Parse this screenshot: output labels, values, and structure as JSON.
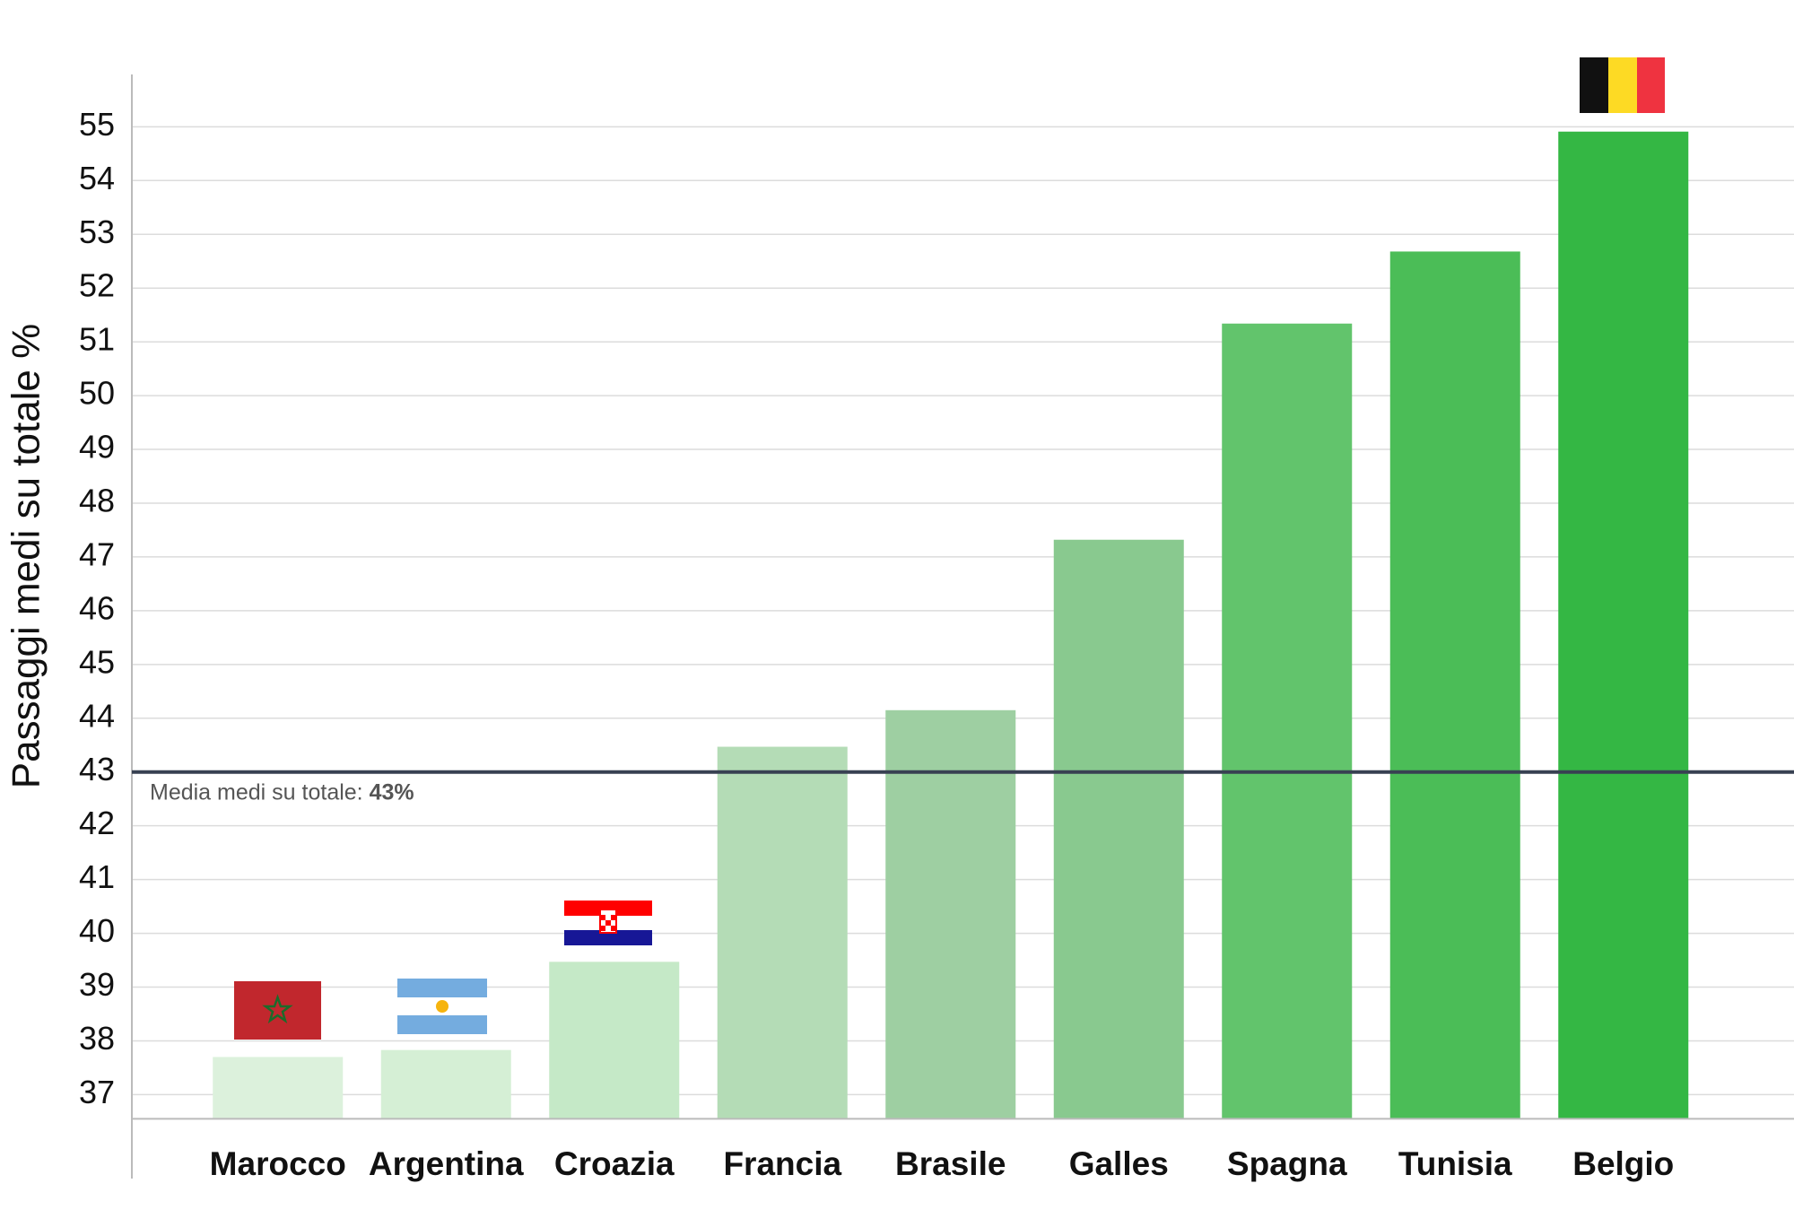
{
  "chart_data": {
    "type": "bar",
    "y_axis_label": "Passaggi medi su totale %",
    "categories": [
      "Marocco",
      "Argentina",
      "Croazia",
      "Francia",
      "Brasile",
      "Galles",
      "Spagna",
      "Tunisia",
      "Belgio"
    ],
    "values": [
      37.7,
      37.83,
      39.47,
      43.47,
      44.15,
      47.32,
      51.34,
      52.68,
      54.91
    ],
    "colors": [
      "#dcf1dc",
      "#d5efd5",
      "#c5e9c7",
      "#b4dcb6",
      "#9ecfa2",
      "#89c98f",
      "#62c46c",
      "#4bbd57",
      "#34b744"
    ],
    "ylim": [
      36.55,
      56
    ],
    "yticks": [
      37,
      38,
      39,
      40,
      41,
      42,
      43,
      44,
      45,
      46,
      47,
      48,
      49,
      50,
      51,
      52,
      53,
      54,
      55
    ],
    "grid": true,
    "mean_value": 43,
    "mean_text": "Media medi su totale:",
    "mean_label": "43%"
  }
}
